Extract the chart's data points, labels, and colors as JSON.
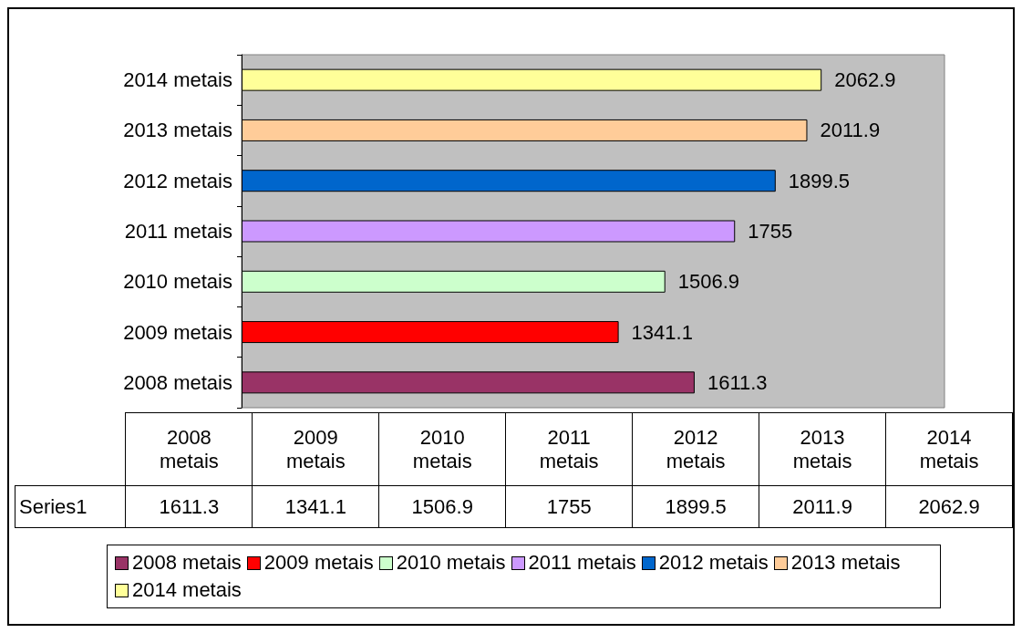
{
  "chart_data": {
    "type": "bar",
    "orientation": "horizontal",
    "categories": [
      "2014 metais",
      "2013 metais",
      "2012 metais",
      "2011 metais",
      "2010 metais",
      "2009 metais",
      "2008 metais"
    ],
    "series": [
      {
        "name": "Series1",
        "values": [
          2062.9,
          2011.9,
          1899.5,
          1755,
          1506.9,
          1341.1,
          1611.3
        ],
        "value_labels": [
          "2062.9",
          "2011.9",
          "1899.5",
          "1755",
          "1506.9",
          "1341.1",
          "1611.3"
        ],
        "colors": [
          "#ffff99",
          "#ffcc99",
          "#0066cc",
          "#cc99ff",
          "#ccffcc",
          "#ff0000",
          "#993366"
        ]
      }
    ],
    "legend": "bottom"
  }
}
